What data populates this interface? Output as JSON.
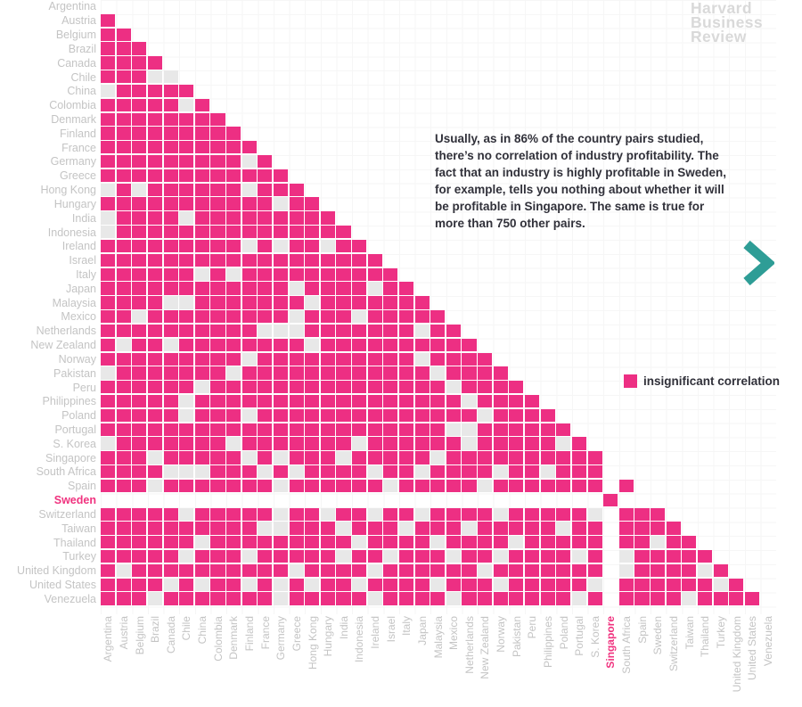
{
  "logo": {
    "lines": [
      "Harvard",
      "Business",
      "Review"
    ]
  },
  "annotation": {
    "lines": [
      "Usually, as in 86% of the country pairs studied,",
      "there’s no correlation of industry profitability. The",
      "fact that an industry is highly profitable in Sweden,",
      "for example, tells you nothing about whether it will",
      "be profitable in Singapore. The same is true for",
      "more than 750 other pairs."
    ]
  },
  "legend": {
    "label": "insignificant correlation"
  },
  "arrow": {
    "meaning": "next"
  },
  "chart_data": {
    "type": "heatmap",
    "subtype": "lower-triangle correlation matrix of country pairs",
    "countries": [
      "Argentina",
      "Austria",
      "Belgium",
      "Brazil",
      "Canada",
      "Chile",
      "China",
      "Colombia",
      "Denmark",
      "Finland",
      "France",
      "Germany",
      "Greece",
      "Hong Kong",
      "Hungary",
      "India",
      "Indonesia",
      "Ireland",
      "Israel",
      "Italy",
      "Japan",
      "Malaysia",
      "Mexico",
      "Netherlands",
      "New Zealand",
      "Norway",
      "Pakistan",
      "Peru",
      "Philippines",
      "Poland",
      "Portugal",
      "S. Korea",
      "Singapore",
      "South Africa",
      "Spain",
      "Sweden",
      "Switzerland",
      "Taiwan",
      "Thailand",
      "Turkey",
      "United Kingdom",
      "United States",
      "Venezuela"
    ],
    "colors": {
      "insignificant_pink": "#ED2F83",
      "significant_gray": "#E8E8E8",
      "highlight_label_pink": "#F0337F"
    },
    "cell_meaning": {
      "pink": "insignificant correlation",
      "gray": "significant correlation",
      "blank": "highlight cross for the Sweden–Singapore pair"
    },
    "highlight": {
      "row": "Sweden",
      "col": "Singapore",
      "note": "Sweden row and Singapore column are blanked white except their shared pink cell"
    },
    "gray_cells_by_row": {
      "Chile": [
        4,
        5
      ],
      "China": [
        1
      ],
      "Colombia": [
        6
      ],
      "Germany": [
        10
      ],
      "Hong Kong": [
        1,
        3,
        10
      ],
      "Hungary": [
        12
      ],
      "India": [
        1,
        6
      ],
      "Indonesia": [
        1
      ],
      "Ireland": [
        10,
        12,
        15
      ],
      "Italy": [
        7,
        9
      ],
      "Japan": [
        13,
        18
      ],
      "Malaysia": [
        5,
        6,
        14
      ],
      "Mexico": [
        3,
        13,
        17
      ],
      "Netherlands": [
        11,
        12,
        13,
        21
      ],
      "New Zealand": [
        2,
        5,
        14
      ],
      "Norway": [
        10,
        21
      ],
      "Pakistan": [
        1,
        9,
        22
      ],
      "Peru": [
        7,
        23
      ],
      "Philippines": [
        6,
        24
      ],
      "Poland": [
        6,
        10,
        25
      ],
      "Portugal": [
        23,
        24
      ],
      "S. Korea": [
        1,
        9,
        17,
        24,
        30
      ],
      "Singapore": [
        4,
        10,
        12,
        16,
        22
      ],
      "South Africa": [
        5,
        6,
        7,
        11,
        13,
        18,
        21,
        26,
        29
      ],
      "Spain": [
        4,
        12,
        19,
        25
      ],
      "Switzerland": [
        6,
        12,
        15,
        18,
        21,
        26,
        32
      ],
      "Taiwan": [
        11,
        12,
        16,
        20,
        24,
        30
      ],
      "Thailand": [
        7,
        17,
        22,
        27,
        36
      ],
      "Turkey": [
        6,
        10,
        16,
        19,
        23,
        26,
        31,
        34
      ],
      "United Kingdom": [
        2,
        13,
        18,
        25,
        34,
        39
      ],
      "United States": [
        5,
        7,
        10,
        12,
        14,
        17,
        22,
        26,
        32,
        40
      ],
      "Venezuela": [
        4,
        12,
        18,
        23,
        31,
        38
      ]
    }
  }
}
